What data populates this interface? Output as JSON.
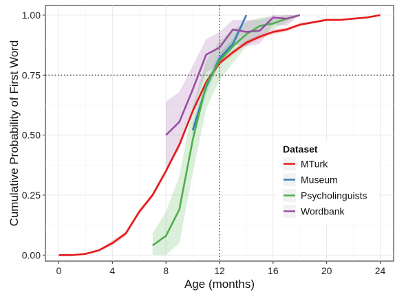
{
  "chart_data": {
    "type": "line",
    "xlabel": "Age (months)",
    "ylabel": "Cumulative Probability of First Word",
    "xlim": [
      -1,
      25
    ],
    "ylim": [
      -0.025,
      1.04
    ],
    "x_ticks": [
      0,
      4,
      8,
      12,
      16,
      20,
      24
    ],
    "y_ticks": [
      0.0,
      0.25,
      0.5,
      0.75,
      1.0
    ],
    "x_tick_labels": [
      "0",
      "4",
      "8",
      "12",
      "16",
      "20",
      "24"
    ],
    "y_tick_labels": [
      "0.00",
      "0.25",
      "0.50",
      "0.75",
      "1.00"
    ],
    "grid": true,
    "reference_lines": {
      "x": 12,
      "y": 0.75,
      "style": "dotted"
    },
    "legend": {
      "title": "Dataset",
      "placement": "right-inside"
    },
    "series": [
      {
        "name": "MTurk",
        "color": "#e41a1c",
        "x": [
          0,
          1,
          2,
          3,
          4,
          5,
          6,
          7,
          8,
          9,
          10,
          11,
          12,
          13,
          14,
          15,
          16,
          17,
          18,
          19,
          20,
          21,
          22,
          23,
          24
        ],
        "y": [
          0.0,
          0.0,
          0.005,
          0.02,
          0.05,
          0.09,
          0.18,
          0.25,
          0.35,
          0.46,
          0.6,
          0.72,
          0.8,
          0.845,
          0.885,
          0.91,
          0.93,
          0.94,
          0.96,
          0.97,
          0.98,
          0.98,
          0.985,
          0.99,
          1.0
        ],
        "band_lower": [
          0.0,
          0.0,
          0.0,
          0.015,
          0.04,
          0.08,
          0.17,
          0.24,
          0.34,
          0.45,
          0.59,
          0.71,
          0.79,
          0.835,
          0.875,
          0.9,
          0.92,
          0.932,
          0.953,
          0.965,
          0.975,
          0.976,
          0.981,
          0.986,
          0.997
        ],
        "band_upper": [
          0.0,
          0.0,
          0.01,
          0.025,
          0.06,
          0.1,
          0.19,
          0.26,
          0.36,
          0.47,
          0.61,
          0.73,
          0.81,
          0.855,
          0.895,
          0.92,
          0.94,
          0.948,
          0.967,
          0.975,
          0.985,
          0.984,
          0.989,
          0.994,
          1.0
        ]
      },
      {
        "name": "Museum",
        "color": "#377eb8",
        "x": [
          10,
          11,
          12,
          13,
          14
        ],
        "y": [
          0.52,
          0.7,
          0.82,
          0.88,
          1.0
        ],
        "band_lower": [
          0.49,
          0.67,
          0.8,
          0.86,
          0.99
        ],
        "band_upper": [
          0.55,
          0.73,
          0.84,
          0.9,
          1.0
        ]
      },
      {
        "name": "Psycholinguists",
        "color": "#4daf4a",
        "x": [
          7,
          8,
          9,
          10,
          11,
          12,
          13,
          14,
          15,
          16,
          17,
          18
        ],
        "y": [
          0.04,
          0.08,
          0.19,
          0.48,
          0.71,
          0.81,
          0.87,
          0.92,
          0.955,
          0.965,
          0.985,
          1.0
        ],
        "band_lower": [
          0.0,
          0.0,
          0.05,
          0.34,
          0.61,
          0.73,
          0.8,
          0.87,
          0.92,
          0.94,
          0.97,
          1.0
        ],
        "band_upper": [
          0.09,
          0.18,
          0.33,
          0.62,
          0.81,
          0.89,
          0.94,
          0.97,
          0.99,
          0.99,
          1.0,
          1.0
        ]
      },
      {
        "name": "Wordbank",
        "color": "#984ea3",
        "x": [
          8,
          9,
          10,
          11,
          12,
          13,
          14,
          15,
          16,
          17,
          18
        ],
        "y": [
          0.5,
          0.555,
          0.69,
          0.835,
          0.865,
          0.94,
          0.93,
          0.935,
          0.99,
          0.985,
          1.0
        ],
        "band_lower": [
          0.36,
          0.44,
          0.6,
          0.76,
          0.8,
          0.88,
          0.87,
          0.88,
          0.96,
          0.955,
          1.0
        ],
        "band_upper": [
          0.64,
          0.68,
          0.79,
          0.9,
          0.93,
          0.98,
          0.98,
          0.98,
          1.0,
          1.0,
          1.0
        ]
      }
    ]
  }
}
